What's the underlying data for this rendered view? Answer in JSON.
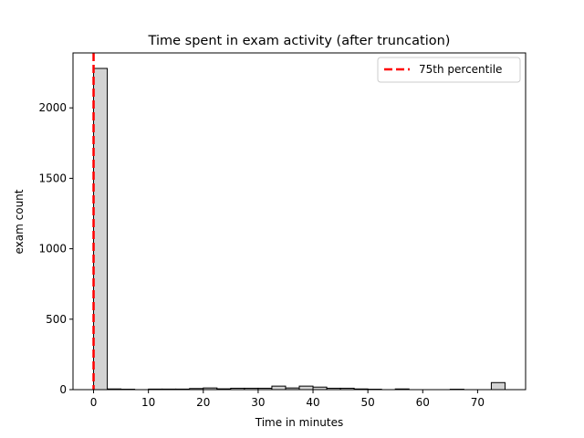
{
  "chart_data": {
    "type": "bar",
    "title": "Time spent in exam activity (after truncation)",
    "xlabel": "Time in minutes",
    "ylabel": "exam count",
    "xlim": [
      -3.75,
      78.75
    ],
    "ylim": [
      0,
      2390
    ],
    "bin_width": 2.5,
    "bin_start": 0,
    "values": [
      2280,
      5,
      3,
      0,
      4,
      4,
      4,
      8,
      12,
      6,
      10,
      10,
      10,
      25,
      12,
      25,
      18,
      10,
      10,
      5,
      3,
      0,
      5,
      0,
      0,
      0,
      3,
      0,
      0,
      50
    ],
    "bar_fill": "#d3d3d3",
    "bar_edge": "#000000",
    "x_ticks": [
      0,
      10,
      20,
      30,
      40,
      50,
      60,
      70
    ],
    "y_ticks": [
      0,
      500,
      1000,
      1500,
      2000
    ],
    "reference_line": {
      "x": 0,
      "label": "75th percentile",
      "color": "#ff0000",
      "style": "dashed"
    },
    "legend_position": "upper right",
    "grid": false
  }
}
